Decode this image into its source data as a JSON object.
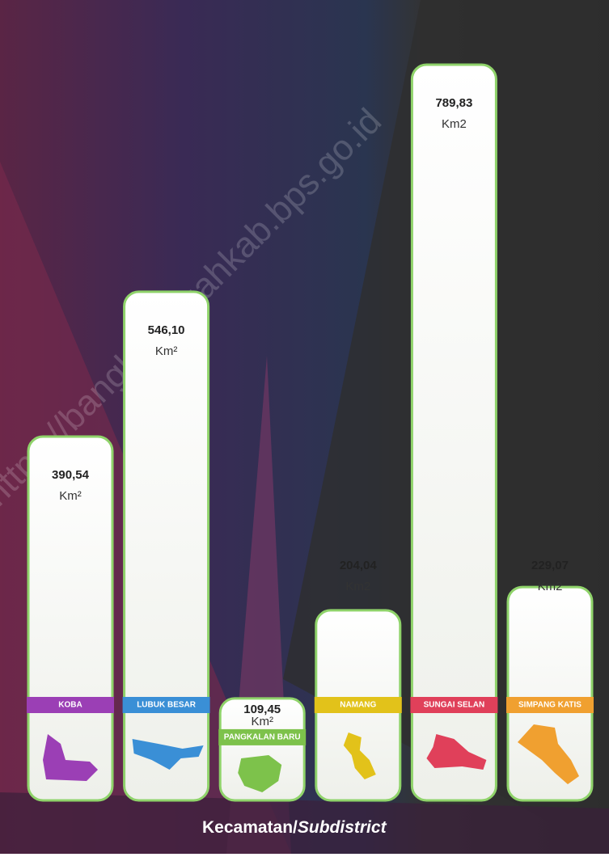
{
  "chart_data": {
    "type": "bar",
    "categories": [
      "KOBA",
      "LUBUK BESAR",
      "PANGKALAN BARU",
      "NAMANG",
      "SUNGAI SELAN",
      "SIMPANG KATIS"
    ],
    "values": [
      390.54,
      546.1,
      109.45,
      204.04,
      789.83,
      229.07
    ],
    "value_labels": [
      "390,54",
      "546,10",
      "109,45",
      "204,04",
      "789,83",
      "229,07"
    ],
    "units": [
      "Km²",
      "Km²",
      "Km²",
      "Km2",
      "Km2",
      "Km2"
    ],
    "colors": [
      "#9b3fb5",
      "#3a8fd6",
      "#7dc24b",
      "#e2c21a",
      "#e0405a",
      "#f0a030"
    ],
    "xlabel": "Kecamatan/",
    "xlabel_italic": "Subdistrict",
    "watermark": "https://bangkatengahkab.bps.go.id"
  }
}
